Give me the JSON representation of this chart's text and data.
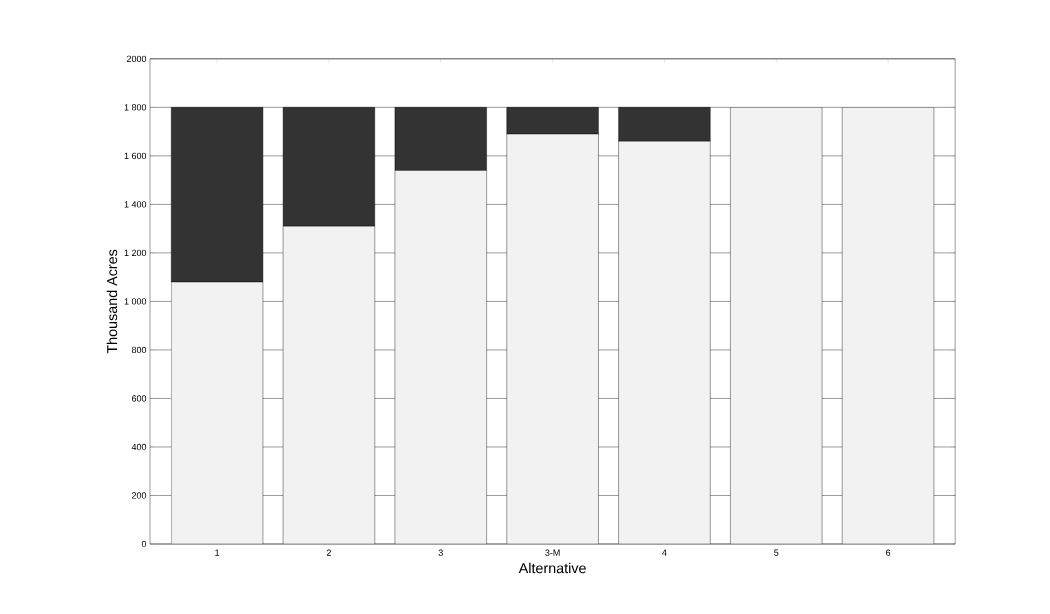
{
  "chart_data": {
    "type": "bar",
    "stacked": true,
    "xlabel": "Alternative",
    "ylabel": "Thousand Acres",
    "categories": [
      "1",
      "2",
      "3",
      "3-M",
      "4",
      "5",
      "6"
    ],
    "series": [
      {
        "color": "#f2f2f2",
        "values": [
          1080,
          1310,
          1540,
          1690,
          1660,
          1800,
          1800
        ]
      },
      {
        "color": "#333333",
        "values": [
          720,
          490,
          260,
          110,
          140,
          null,
          null
        ]
      }
    ],
    "ylim": [
      0,
      2000
    ],
    "yticks": [
      0,
      200,
      400,
      600,
      800,
      {
        "value": 1000,
        "label": "1 000"
      },
      {
        "value": 1200,
        "label": "1 200"
      },
      {
        "value": 1400,
        "label": "1 400"
      },
      {
        "value": 1600,
        "label": "1 600"
      },
      {
        "value": 1800,
        "label": "1 800"
      },
      2000
    ],
    "grid": "y"
  }
}
